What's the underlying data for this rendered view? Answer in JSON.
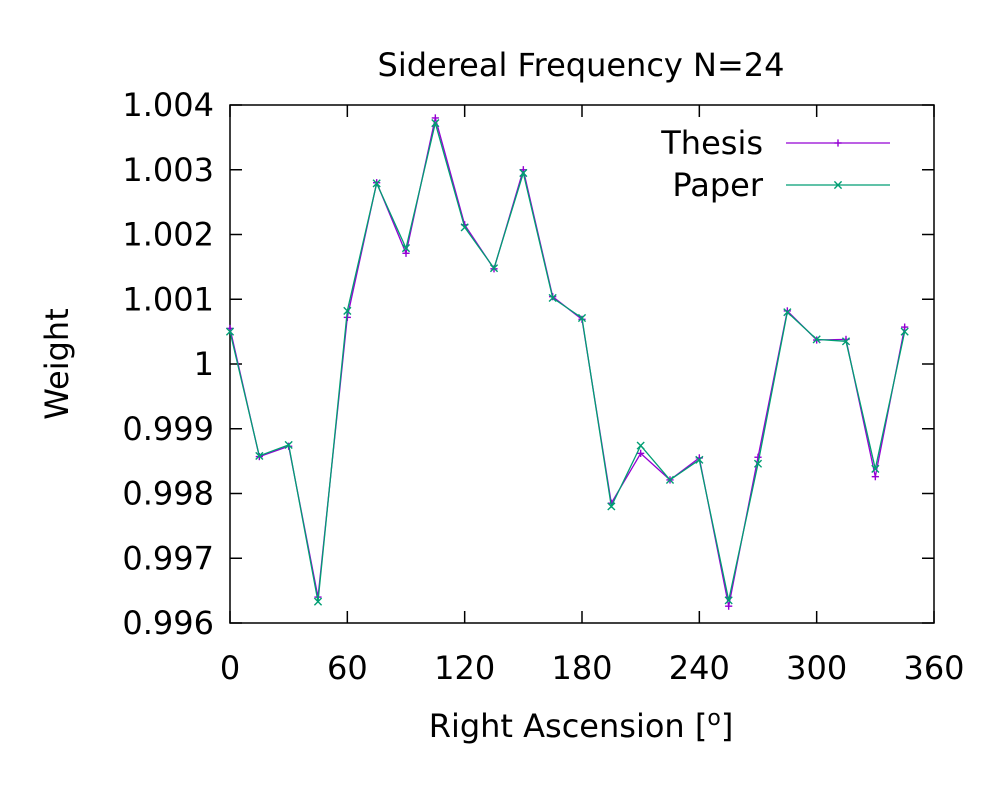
{
  "chart_data": {
    "type": "line",
    "title": "Sidereal Frequency N=24",
    "xlabel": "Right Ascension [",
    "xlabel_sup": "o",
    "xlabel_suffix": "]",
    "ylabel": "Weight",
    "xlim": [
      0,
      360
    ],
    "ylim": [
      0.996,
      1.004
    ],
    "xticks": [
      0,
      60,
      120,
      180,
      240,
      300,
      360
    ],
    "xtick_labels": [
      "0",
      "60",
      "120",
      "180",
      "240",
      "300",
      "360"
    ],
    "yticks": [
      0.996,
      0.997,
      0.998,
      0.999,
      1.0,
      1.001,
      1.002,
      1.003,
      1.004
    ],
    "ytick_labels": [
      "0.996",
      "0.997",
      "0.998",
      "0.999",
      "1",
      "1.001",
      "1.002",
      "1.003",
      "1.004"
    ],
    "grid": false,
    "legend_position": "top-right",
    "x": [
      0,
      15,
      30,
      45,
      60,
      75,
      90,
      105,
      120,
      135,
      150,
      165,
      180,
      195,
      210,
      225,
      240,
      255,
      270,
      285,
      300,
      315,
      330,
      345
    ],
    "series": [
      {
        "name": "Thesis",
        "color": "#9400d3",
        "marker": "plus",
        "values": [
          1.00055,
          0.99857,
          0.99873,
          0.9964,
          1.00072,
          1.0028,
          1.00171,
          1.0038,
          1.00215,
          1.00147,
          1.003,
          1.00104,
          1.00069,
          0.99785,
          0.99862,
          0.99821,
          0.99855,
          0.99626,
          0.99856,
          1.00082,
          1.00037,
          1.00038,
          0.99826,
          1.00057
        ]
      },
      {
        "name": "Paper",
        "color": "#009e73",
        "marker": "cross",
        "values": [
          1.0005,
          0.99858,
          0.99875,
          0.99633,
          1.00082,
          1.00279,
          1.00179,
          1.00372,
          1.00211,
          1.00148,
          1.00295,
          1.00102,
          1.00071,
          0.9978,
          0.99874,
          0.99821,
          0.99852,
          0.99635,
          0.99846,
          1.0008,
          1.00038,
          1.00035,
          0.99838,
          1.0005
        ]
      }
    ]
  }
}
